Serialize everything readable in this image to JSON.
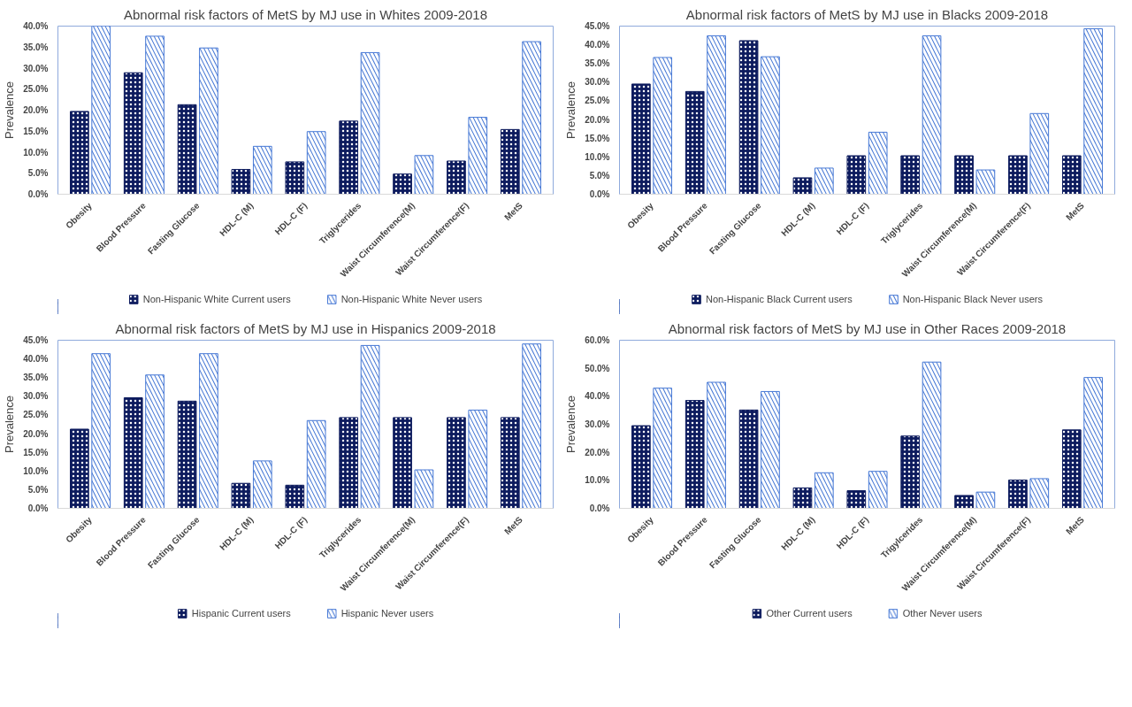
{
  "chart_data": [
    {
      "type": "bar",
      "title": "Abnormal risk factors of MetS by MJ use in Whites 2009-2018",
      "ylabel": "Prevalence",
      "categories": [
        "Obesity",
        "Blood Pressure",
        "Fasting Glucose",
        "HDL-C (M)",
        "HDL-C (F)",
        "Triglycerides",
        "Waist Circumference(M)",
        "Waist Circumference(F)",
        "MetS"
      ],
      "series": [
        {
          "name": "Non-Hispanic White Current users",
          "color": "#0d1b5e",
          "values": [
            19.7,
            28.9,
            21.3,
            5.9,
            7.7,
            17.4,
            4.8,
            7.9,
            15.4
          ]
        },
        {
          "name": "Non-Hispanic White Never users",
          "color": "#4a7bd6",
          "values": [
            40.0,
            37.6,
            34.8,
            11.4,
            14.9,
            33.7,
            9.2,
            18.3,
            36.3
          ]
        }
      ],
      "ylim": [
        0,
        40
      ],
      "yticks": [
        {
          "value": 0,
          "label": "0.0%"
        },
        {
          "value": 5,
          "label": "5.0%"
        },
        {
          "value": 10,
          "label": "10.0%"
        },
        {
          "value": 15,
          "label": "15.0%"
        },
        {
          "value": 20,
          "label": "20.0%"
        },
        {
          "value": 25,
          "label": "25.0%"
        },
        {
          "value": 30,
          "label": "30.0%"
        },
        {
          "value": 35,
          "label": "35.0%"
        },
        {
          "value": 40,
          "label": "40.0%"
        }
      ],
      "legend": "bottom"
    },
    {
      "type": "bar",
      "title": "Abnormal risk factors of MetS by MJ use in Blacks 2009-2018",
      "ylabel": "Prevalence",
      "categories": [
        "Obesity",
        "Blood Pressure",
        "Fasting Glucose",
        "HDL-C (M)",
        "HDL-C (F)",
        "Triglycerides",
        "Waist Circumference(M)",
        "Waist Circumference(F)",
        "MetS"
      ],
      "series": [
        {
          "name": "Non-Hispanic Black Current users",
          "color": "#0d1b5e",
          "values": [
            29.5,
            27.5,
            41.1,
            4.4,
            10.3,
            10.3,
            10.3,
            10.3,
            10.3
          ]
        },
        {
          "name": "Non-Hispanic Black Never users",
          "color": "#4a7bd6",
          "values": [
            36.6,
            42.4,
            36.8,
            7.0,
            16.6,
            42.4,
            6.5,
            21.6,
            44.3
          ]
        }
      ],
      "ylim": [
        0,
        45
      ],
      "yticks": [
        {
          "value": 0,
          "label": "0.0%"
        },
        {
          "value": 5,
          "label": "5.0%"
        },
        {
          "value": 10,
          "label": "10.0%"
        },
        {
          "value": 15,
          "label": "15.0%"
        },
        {
          "value": 20,
          "label": "20.0%"
        },
        {
          "value": 25,
          "label": "25.0%"
        },
        {
          "value": 30,
          "label": "30.0%"
        },
        {
          "value": 35,
          "label": "35.0%"
        },
        {
          "value": 40,
          "label": "40.0%"
        },
        {
          "value": 45,
          "label": "45.0%"
        }
      ],
      "legend": "bottom"
    },
    {
      "type": "bar",
      "title": "Abnormal risk factors of MetS by MJ use in Hispanics 2009-2018",
      "ylabel": "Prevalence",
      "categories": [
        "Obesity",
        "Blood Pressure",
        "Fasting Glucose",
        "HDL-C (M)",
        "HDL-C (F)",
        "Triglycerides",
        "Waist Circumference(M)",
        "Waist Circumference(F)",
        "MetS"
      ],
      "series": [
        {
          "name": "Hispanic Current users",
          "color": "#0d1b5e",
          "values": [
            21.2,
            29.6,
            28.7,
            6.7,
            6.2,
            24.3,
            24.3,
            24.3,
            24.3
          ]
        },
        {
          "name": "Hispanic Never users",
          "color": "#4a7bd6",
          "values": [
            41.4,
            35.7,
            41.4,
            12.7,
            23.5,
            43.6,
            10.3,
            26.3,
            44.0
          ]
        }
      ],
      "ylim": [
        0,
        45
      ],
      "yticks": [
        {
          "value": 0,
          "label": "0.0%"
        },
        {
          "value": 5,
          "label": "5.0%"
        },
        {
          "value": 10,
          "label": "10.0%"
        },
        {
          "value": 15,
          "label": "15.0%"
        },
        {
          "value": 20,
          "label": "20.0%"
        },
        {
          "value": 25,
          "label": "25.0%"
        },
        {
          "value": 30,
          "label": "30.0%"
        },
        {
          "value": 35,
          "label": "35.0%"
        },
        {
          "value": 40,
          "label": "40.0%"
        },
        {
          "value": 45,
          "label": "45.0%"
        }
      ],
      "legend": "bottom"
    },
    {
      "type": "bar",
      "title": "Abnormal risk factors of MetS by MJ use in Other Races 2009-2018",
      "ylabel": "Prevalence",
      "categories": [
        "Obesity",
        "Blood Pressure",
        "Fasting Glucose",
        "HDL-C (M)",
        "HDL-C (F)",
        "Trigylcerides",
        "Waist Circumference(M)",
        "Waist Circumference(F)",
        "MetS"
      ],
      "series": [
        {
          "name": "Other Current users",
          "color": "#0d1b5e",
          "values": [
            29.5,
            38.5,
            35.1,
            7.3,
            6.3,
            25.8,
            4.6,
            10.1,
            28.0
          ]
        },
        {
          "name": "Other Never users",
          "color": "#4a7bd6",
          "values": [
            42.9,
            45.0,
            41.7,
            12.7,
            13.2,
            52.2,
            5.8,
            10.6,
            46.7
          ]
        }
      ],
      "ylim": [
        0,
        60
      ],
      "yticks": [
        {
          "value": 0,
          "label": "0.0%"
        },
        {
          "value": 10,
          "label": "10.0%"
        },
        {
          "value": 20,
          "label": "20.0%"
        },
        {
          "value": 30,
          "label": "30.0%"
        },
        {
          "value": 40,
          "label": "40.0%"
        },
        {
          "value": 50,
          "label": "50.0%"
        },
        {
          "value": 60,
          "label": "60.0%"
        }
      ],
      "legend": "bottom"
    }
  ]
}
